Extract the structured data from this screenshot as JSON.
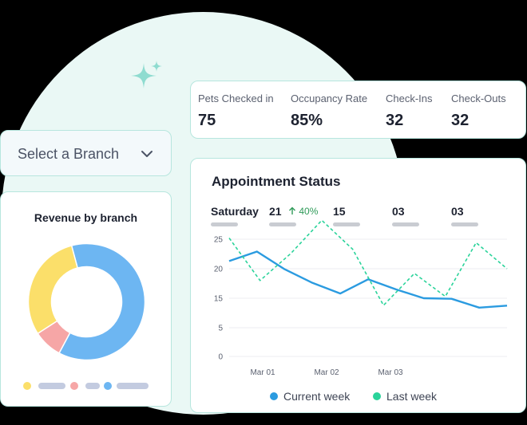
{
  "stats": [
    {
      "label": "Pets Checked in",
      "value": "75"
    },
    {
      "label": "Occupancy Rate",
      "value": "85%"
    },
    {
      "label": "Check-Ins",
      "value": "32"
    },
    {
      "label": "Check-Outs",
      "value": "32"
    }
  ],
  "branch_select": {
    "label": "Select a Branch",
    "icon": "chevron-down-icon"
  },
  "revenue": {
    "title": "Revenue by branch",
    "segments": [
      {
        "share": 0.62,
        "color": "#6db6f2"
      },
      {
        "share": 0.08,
        "color": "#f6a6a6"
      },
      {
        "share": 0.3,
        "color": "#fbdf6a"
      }
    ],
    "legend_colors": [
      "#fbdf6a",
      "#f6a6a6",
      "#6db6f2"
    ]
  },
  "appointment": {
    "title": "Appointment Status",
    "days": [
      {
        "label": "Saturday"
      },
      {
        "label": "21",
        "trend": "40%"
      },
      {
        "label": "15"
      },
      {
        "label": "03"
      },
      {
        "label": "03"
      }
    ]
  },
  "chart_data": {
    "type": "line",
    "x_tick_labels": [
      "Mar 01",
      "Mar 02",
      "Mar 03"
    ],
    "y_ticks": [
      "0",
      "5",
      "15",
      "20",
      "25"
    ],
    "ylim": [
      0,
      25
    ],
    "series": [
      {
        "name": "Current week",
        "color": "#2b9be0",
        "dashed": false,
        "values": [
          21.3,
          22.9,
          19.9,
          17.6,
          15.8,
          18.2,
          16.5,
          15.0,
          14.8,
          11.8,
          12.5
        ]
      },
      {
        "name": "Last week",
        "color": "#2ad39a",
        "dashed": true,
        "values": [
          25.2,
          18.0,
          22.6,
          28.2,
          23.3,
          12.6,
          19.2,
          15.3,
          24.4,
          20.0
        ]
      }
    ]
  }
}
